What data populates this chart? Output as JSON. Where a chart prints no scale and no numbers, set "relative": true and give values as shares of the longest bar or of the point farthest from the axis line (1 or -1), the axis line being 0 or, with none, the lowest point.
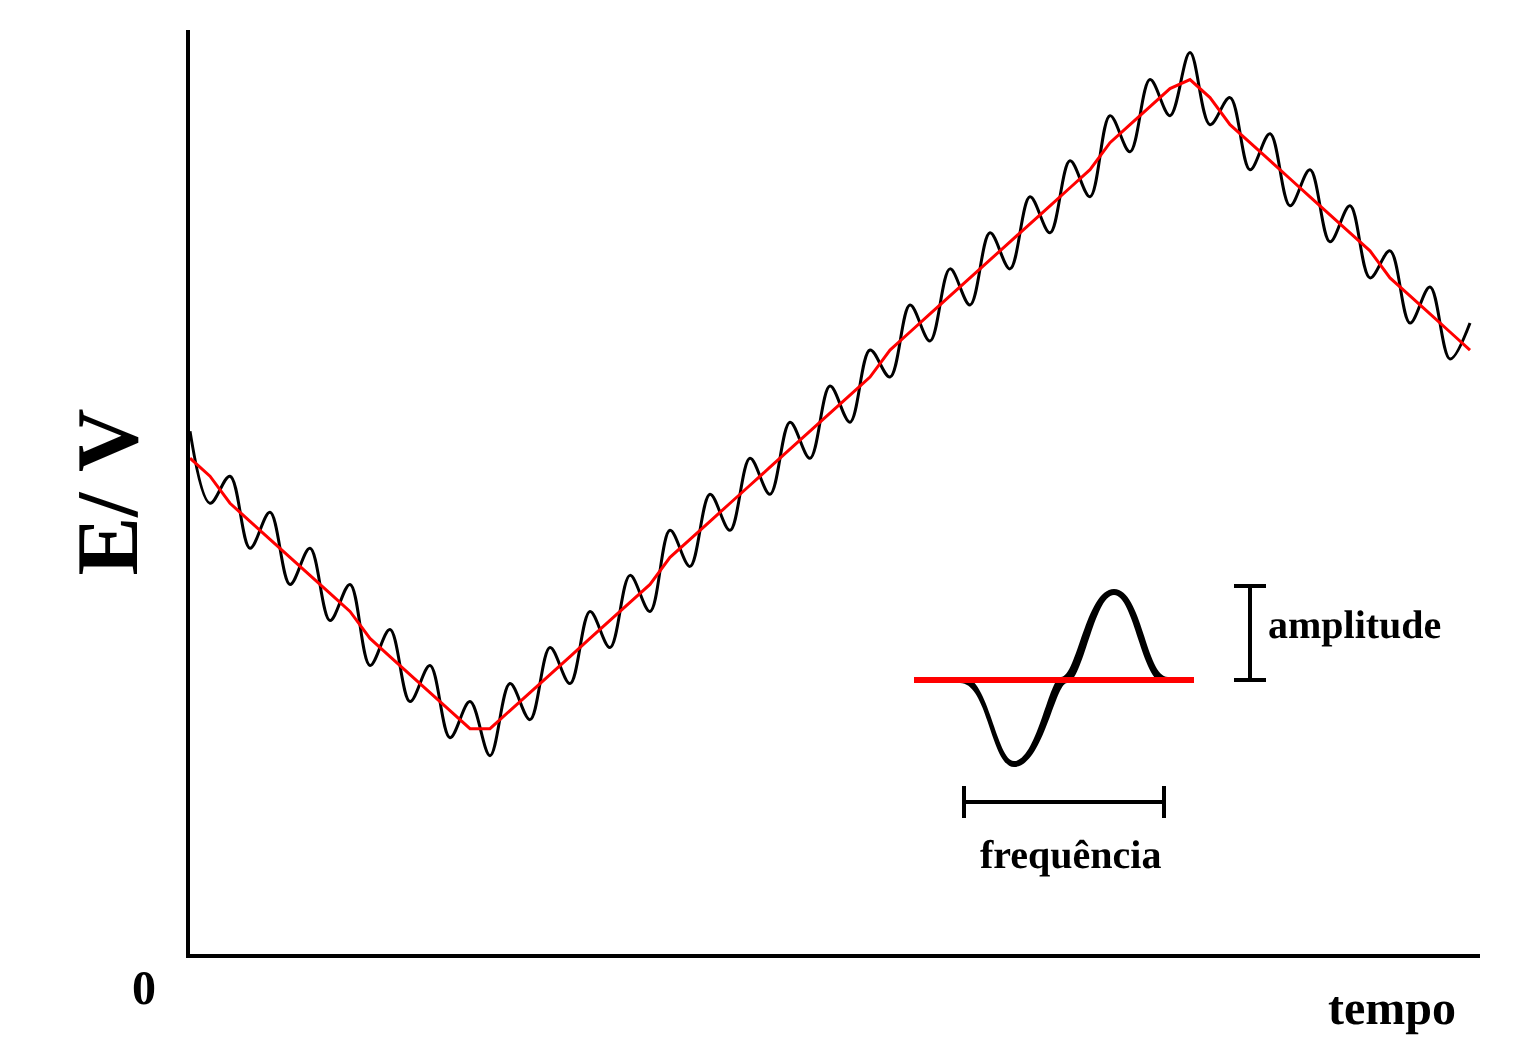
{
  "chart_data": {
    "type": "line",
    "relative": true,
    "ylabel": "E/ V",
    "xlabel": "tempo",
    "annotations": [
      "0",
      "amplitude",
      "frequência"
    ],
    "categories": [
      null,
      null,
      null,
      null,
      null,
      null,
      null,
      null,
      null,
      null,
      null,
      null,
      null,
      null,
      null,
      null,
      null,
      null,
      null,
      null,
      null,
      null,
      null,
      null,
      null,
      null,
      null,
      null,
      null,
      null,
      null,
      null,
      null,
      null,
      null,
      null,
      null,
      null,
      null,
      null,
      null,
      null,
      null,
      null,
      null,
      null,
      null,
      null,
      null,
      null,
      null,
      null,
      null,
      null,
      null,
      null,
      null,
      null,
      null,
      null,
      null,
      null,
      null,
      null,
      null
    ],
    "series": [
      {
        "color": "#000000",
        "values": [
          0.58,
          0.5,
          0.53,
          0.45,
          0.49,
          0.41,
          0.45,
          0.37,
          0.41,
          0.32,
          0.36,
          0.28,
          0.32,
          0.24,
          0.28,
          0.22,
          0.3,
          0.26,
          0.34,
          0.3,
          0.38,
          0.34,
          0.42,
          0.38,
          0.47,
          0.43,
          0.51,
          0.47,
          0.55,
          0.51,
          0.59,
          0.55,
          0.63,
          0.59,
          0.67,
          0.64,
          0.72,
          0.68,
          0.76,
          0.72,
          0.8,
          0.76,
          0.84,
          0.8,
          0.88,
          0.84,
          0.93,
          0.89,
          0.97,
          0.93,
          1.0,
          0.92,
          0.95,
          0.87,
          0.91,
          0.83,
          0.87,
          0.79,
          0.83,
          0.75,
          0.78,
          0.7,
          0.74,
          0.66,
          0.7
        ]
      },
      {
        "color": "#ff0000",
        "values": [
          0.55,
          0.53,
          0.5,
          0.48,
          0.46,
          0.44,
          0.42,
          0.4,
          0.38,
          0.35,
          0.33,
          0.31,
          0.29,
          0.27,
          0.25,
          0.25,
          0.27,
          0.29,
          0.31,
          0.33,
          0.35,
          0.37,
          0.39,
          0.41,
          0.44,
          0.46,
          0.48,
          0.5,
          0.52,
          0.54,
          0.56,
          0.58,
          0.6,
          0.62,
          0.64,
          0.67,
          0.69,
          0.71,
          0.73,
          0.75,
          0.77,
          0.79,
          0.81,
          0.83,
          0.85,
          0.87,
          0.9,
          0.92,
          0.94,
          0.96,
          0.97,
          0.95,
          0.92,
          0.9,
          0.88,
          0.86,
          0.84,
          0.82,
          0.8,
          0.78,
          0.75,
          0.73,
          0.71,
          0.69,
          0.67
        ]
      }
    ],
    "grid": false,
    "marker": "none"
  }
}
